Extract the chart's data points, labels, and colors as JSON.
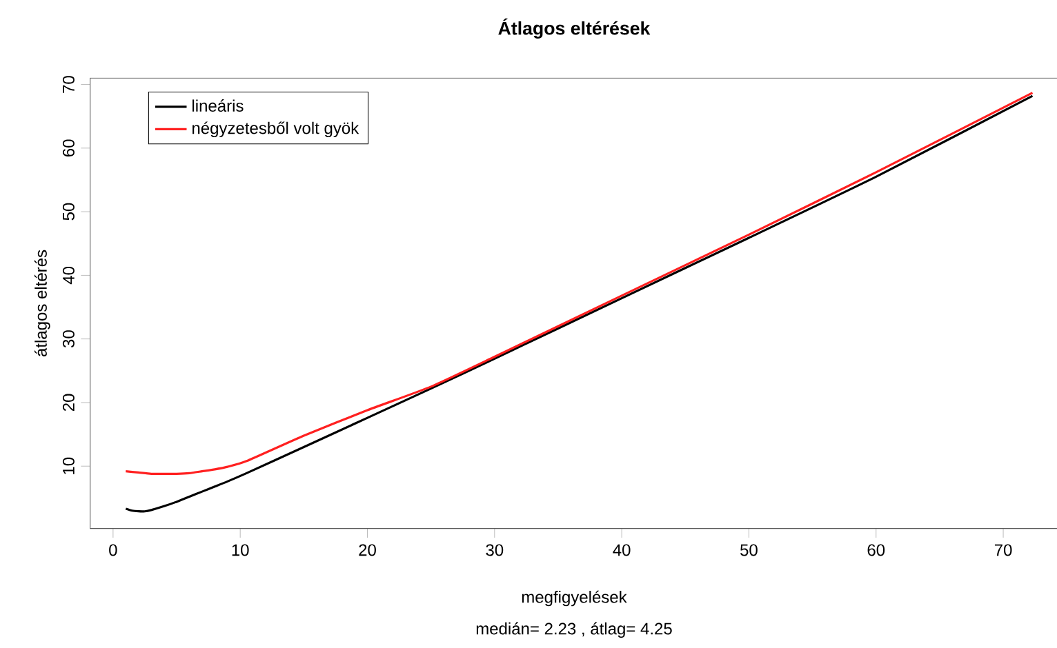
{
  "chart_data": {
    "type": "line",
    "title": "Átlagos eltérések",
    "xlabel": "megfigyelések",
    "ylabel": "átlagos eltérés",
    "annotations": [
      "medián= 2.23 , átlag= 4.25"
    ],
    "series": [
      {
        "name": "lineáris",
        "color": "#000000",
        "x": [
          1,
          1.5,
          2,
          2.5,
          3,
          4,
          5,
          6,
          7,
          8,
          9,
          10.5,
          15,
          20,
          25,
          30,
          40,
          50,
          60,
          72.3
        ],
        "values": [
          3.3,
          3.0,
          2.9,
          2.9,
          3.1,
          3.7,
          4.4,
          5.2,
          6.0,
          6.8,
          7.6,
          8.9,
          13.0,
          17.6,
          22.2,
          26.9,
          36.4,
          45.9,
          55.5,
          68.2
        ]
      },
      {
        "name": "négyzetesből volt gyök",
        "color": "#ff2020",
        "x": [
          1,
          2,
          3,
          4,
          5,
          6,
          7,
          8,
          9,
          10.5,
          15,
          20,
          25,
          30,
          40,
          50,
          60,
          72.3
        ],
        "values": [
          9.2,
          9.0,
          8.8,
          8.8,
          8.8,
          8.9,
          9.2,
          9.5,
          9.9,
          10.8,
          14.8,
          18.8,
          22.5,
          27.2,
          36.8,
          46.4,
          56.2,
          68.7
        ]
      }
    ],
    "xlim": [
      -1.8,
      74.3
    ],
    "ylim": [
      0.2,
      71
    ],
    "xticks": [
      0,
      10,
      20,
      30,
      40,
      50,
      60,
      70
    ],
    "yticks": [
      10,
      20,
      30,
      40,
      50,
      60,
      70
    ],
    "grid": false,
    "legend": "top left",
    "marker": "none",
    "line_style": "solid"
  }
}
